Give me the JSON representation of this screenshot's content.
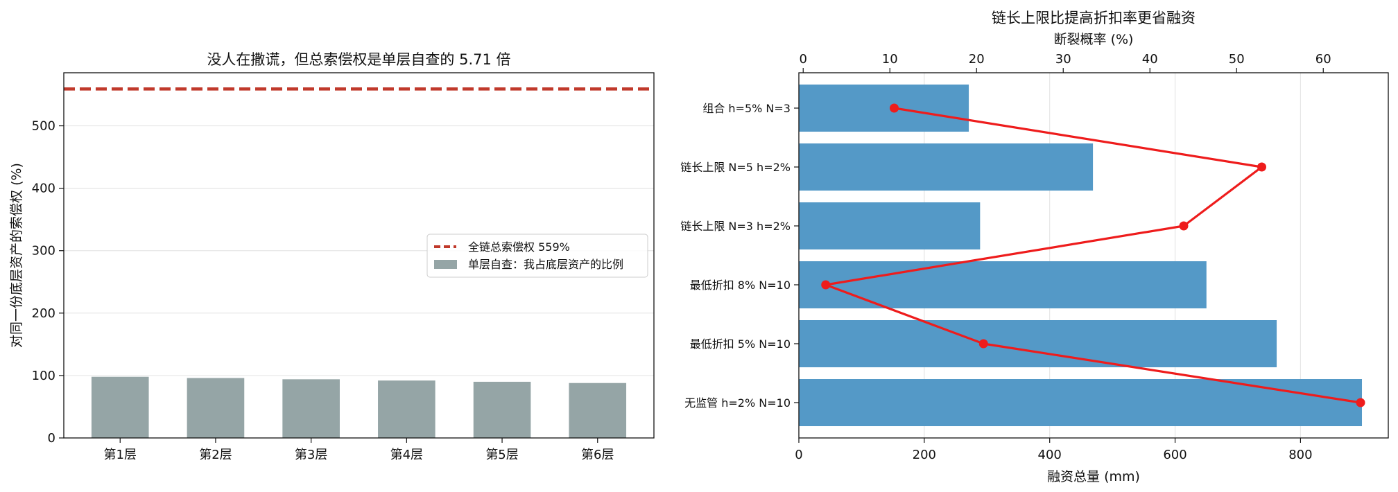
{
  "chart_data": [
    {
      "type": "bar",
      "title": "没人在撒谎，但总索偿权是单层自查的 5.71 倍",
      "ylabel": "对同一份底层资产的索偿权 (%)",
      "categories": [
        "第1层",
        "第2层",
        "第3层",
        "第4层",
        "第5层",
        "第6层"
      ],
      "series": [
        {
          "name": "单层自查：我占底层资产的比例",
          "values": [
            98,
            96,
            94,
            92,
            90,
            88
          ],
          "color": "#95a5a6"
        }
      ],
      "reference_line": {
        "name": "全链总索偿权 559%",
        "value": 559,
        "color": "#c0392b",
        "style": "dashed"
      },
      "ylim": [
        0,
        585
      ],
      "yticks": [
        0,
        100,
        200,
        300,
        400,
        500
      ],
      "legend": "center-right",
      "grid": "y"
    },
    {
      "type": "bar",
      "orientation": "horizontal",
      "title": "链长上限比提高折扣率更省融资",
      "xlabel": "融资总量 (mm)",
      "xlabel_color": "#3a87c8",
      "secondary_xlabel": "断裂概率 (%)",
      "secondary_xlabel_color": "#d04a3a",
      "categories": [
        "无监管 h=2% N=10",
        "最低折扣 5% N=10",
        "最低折扣 8% N=10",
        "链长上限 N=3 h=2%",
        "链长上限 N=5 h=2%",
        "组合 h=5% N=3"
      ],
      "series": [
        {
          "name": "融资总量",
          "axis": "bottom",
          "values": [
            898,
            762,
            650,
            289,
            469,
            271
          ],
          "color": "#5499c7"
        },
        {
          "name": "断裂概率",
          "axis": "top",
          "type": "line",
          "values": [
            64.3,
            20.8,
            2.6,
            43.9,
            52.9,
            10.5
          ],
          "color": "#ee1c1c"
        }
      ],
      "xlim": [
        0,
        940
      ],
      "xticks": [
        0,
        200,
        400,
        600,
        800
      ],
      "secondary_xlim": [
        -0.5,
        67.5
      ],
      "secondary_xticks": [
        0,
        10,
        20,
        30,
        40,
        50,
        60
      ],
      "grid": "x"
    }
  ]
}
